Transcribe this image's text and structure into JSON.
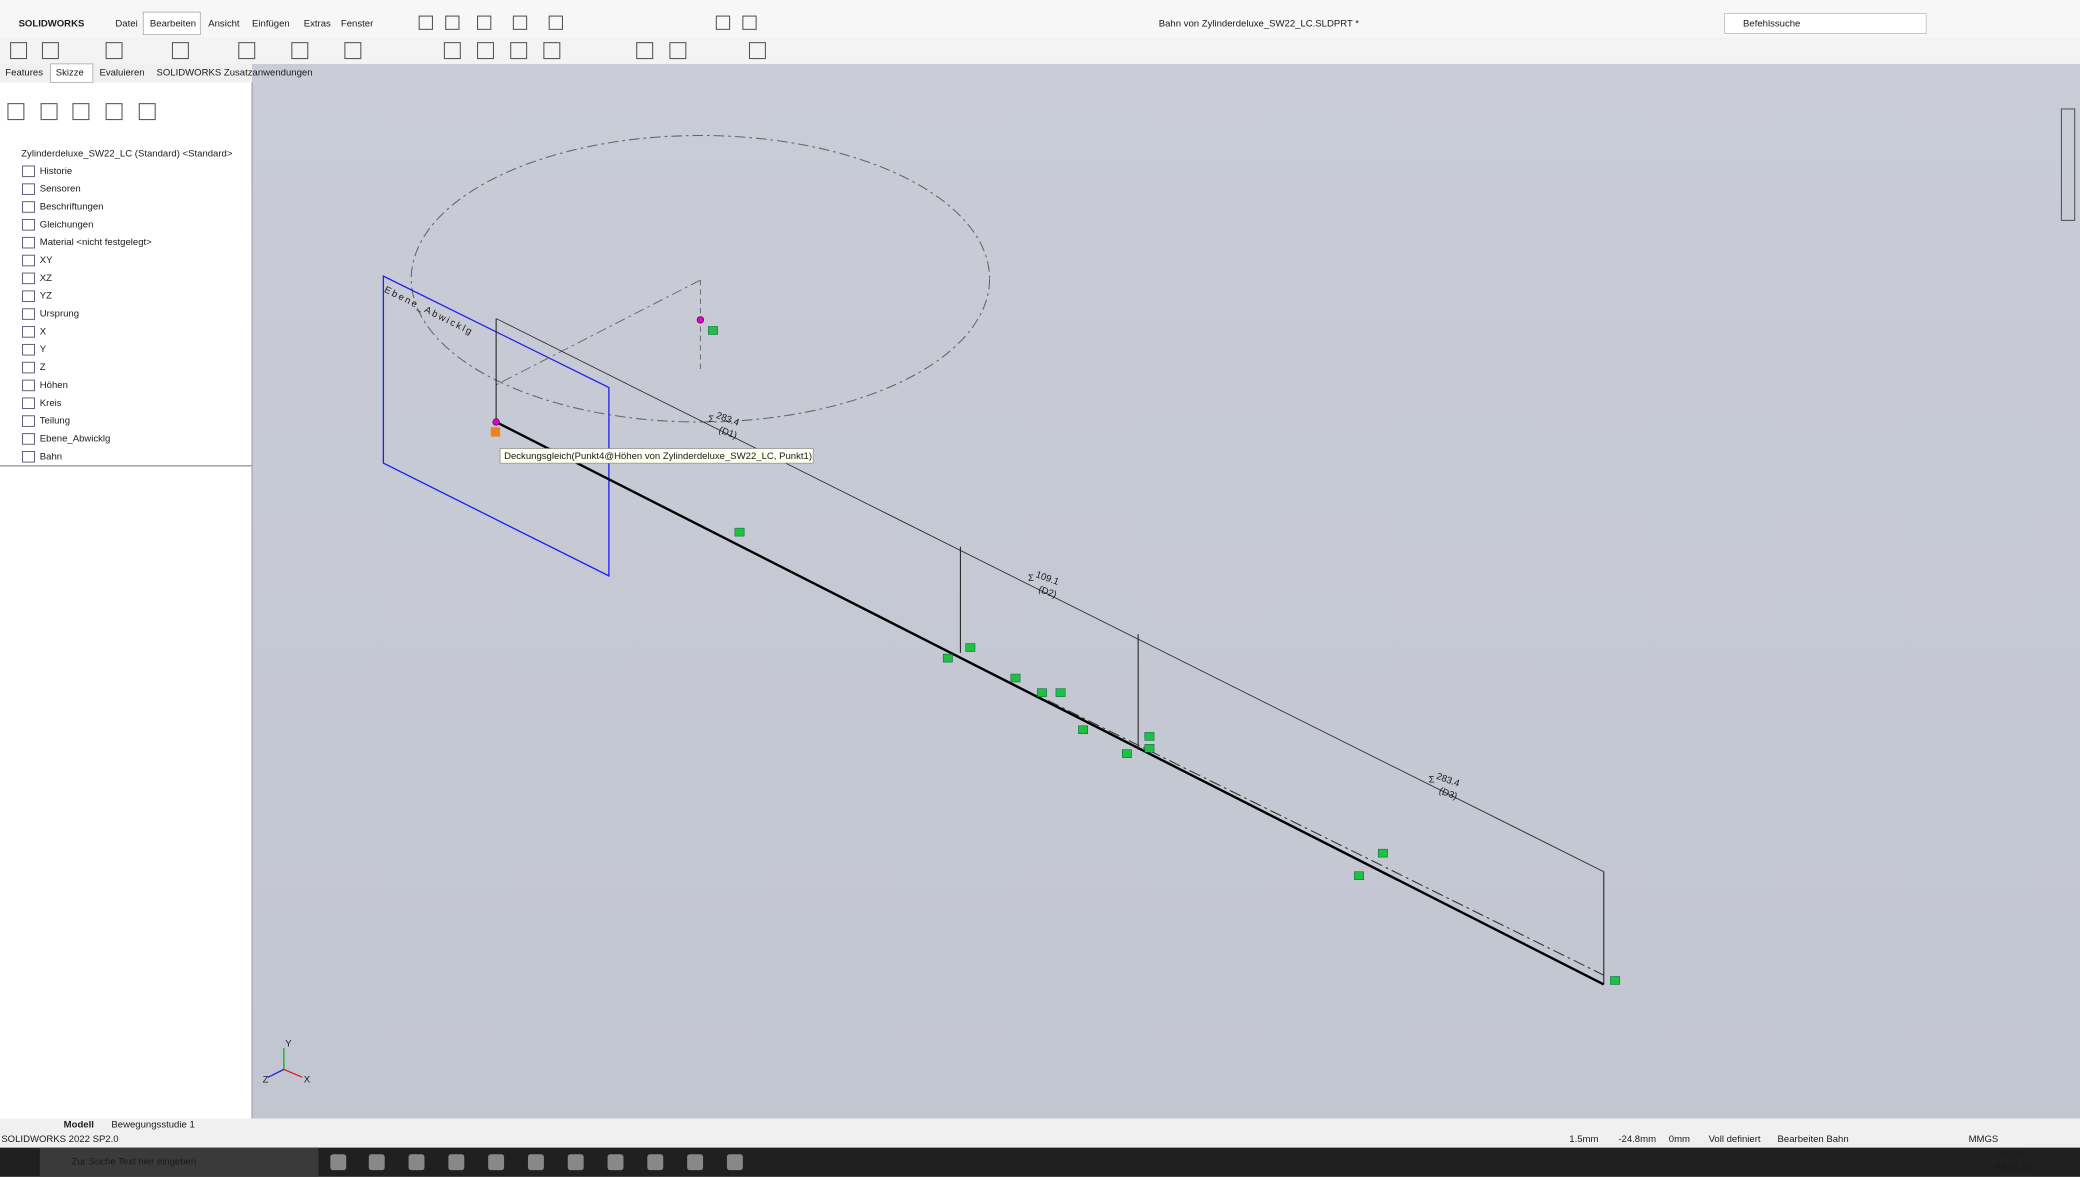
{
  "app": {
    "logo": "SOLIDWORKS",
    "menu": [
      "Datei",
      "Bearbeiten",
      "Ansicht",
      "Einfügen",
      "Extras",
      "Fenster"
    ],
    "title": "Bahn von Zylinderdeluxe_SW22_LC.SLDPRT *",
    "search": "Befehlssuche"
  },
  "tabs": [
    "Features",
    "Skizze",
    "Evaluieren",
    "SOLIDWORKS Zusatzanwendungen"
  ],
  "tree": {
    "root": "Zylinderdeluxe_SW22_LC (Standard) <Standard>",
    "items": [
      "Historie",
      "Sensoren",
      "Beschriftungen",
      "Gleichungen",
      "Material <nicht festgelegt>",
      "XY",
      "XZ",
      "YZ",
      "Ursprung",
      "X",
      "Y",
      "Z",
      "Höhen",
      "Kreis",
      "Teilung",
      "Ebene_Abwicklg",
      "Bahn"
    ]
  },
  "viewport": {
    "plane_label": "Ebene_Abwicklg",
    "tooltip": "Deckungsgleich(Punkt4@Höhen von Zylinderdeluxe_SW22_LC, Punkt1)",
    "dimensions": [
      {
        "value": "283.4",
        "name": "(D1)"
      },
      {
        "value": "109.1",
        "name": "(D2)"
      },
      {
        "value": "283.4",
        "name": "(D3)"
      }
    ],
    "triad": [
      "X",
      "Y",
      "Z"
    ]
  },
  "bottom_tabs": [
    "Modell",
    "Bewegungsstudie 1"
  ],
  "status": {
    "version": "SOLIDWORKS 2022 SP2.0",
    "fields": [
      "1.5mm",
      "-24.8mm",
      "0mm",
      "Voll definiert",
      "Bearbeiten Bahn"
    ],
    "units": "MMGS"
  },
  "taskbar": {
    "search": "Zur Suche Text hier eingeben",
    "time": "05:05",
    "date": "08.06.22"
  }
}
